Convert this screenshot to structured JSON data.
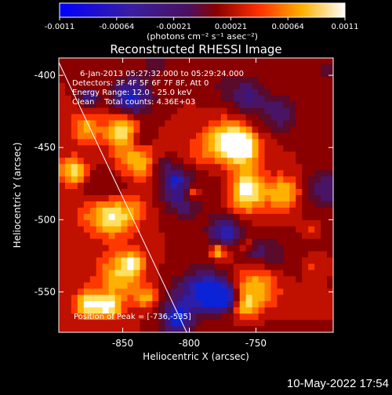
{
  "chart_data": {
    "type": "heatmap",
    "title": "Reconstructed RHESSI Image",
    "xlabel": "Heliocentric X (arcsec)",
    "ylabel": "Heliocentric Y (arcsec)",
    "xlim": [
      -898,
      -692
    ],
    "ylim": [
      -578,
      -388
    ],
    "x_ticks": [
      -850,
      -800,
      -750
    ],
    "y_ticks": [
      -400,
      -450,
      -500,
      -550
    ],
    "x_tick_labels": [
      "-850",
      "-800",
      "-750"
    ],
    "y_tick_labels": [
      "-400",
      "-450",
      "-500",
      "-550"
    ],
    "colorbar": {
      "colormap": "hot-blue",
      "range": [
        -0.0011,
        0.0011
      ],
      "tick_labels": [
        "-0.0011",
        "-0.00064",
        "-0.00021",
        "0.00021",
        "0.00064",
        "0.0011"
      ],
      "unit_text": "(photons cm⁻² s⁻¹ asec⁻²)"
    },
    "annotations": [
      "6-Jan-2013 05:27:32.000 to 05:29:24.000",
      "Detectors: 3F 4F 5F 6F 7F 8F, Att 0",
      "Energy Range: 12.0 - 25.0 keV",
      "Clean    Total counts: 4.36E+03"
    ],
    "peak_label": "Position of Peak = [-736,-535]",
    "peak": {
      "x": -736,
      "y": -535
    },
    "limb_line": [
      [
        -898,
        -391
      ],
      [
        -802,
        -578
      ]
    ],
    "grid": false
  },
  "footer": {
    "date": "10-May-2022 17:54"
  }
}
